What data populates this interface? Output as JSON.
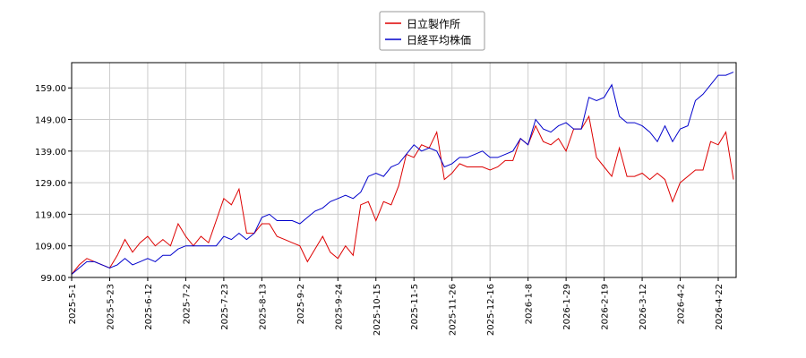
{
  "chart_data": {
    "type": "line",
    "x": [
      "2025-5-1",
      null,
      null,
      null,
      null,
      "2025-5-23",
      null,
      null,
      null,
      null,
      "2025-6-12",
      null,
      null,
      null,
      null,
      "2025-7-2",
      null,
      null,
      null,
      null,
      "2025-7-23",
      null,
      null,
      null,
      null,
      "2025-8-13",
      null,
      null,
      null,
      null,
      "2025-9-2",
      null,
      null,
      null,
      null,
      "2025-9-24",
      null,
      null,
      null,
      null,
      "2025-10-15",
      null,
      null,
      null,
      null,
      "2025-11-5",
      null,
      null,
      null,
      null,
      "2025-11-26",
      null,
      null,
      null,
      null,
      "2025-12-16",
      null,
      null,
      null,
      null,
      "2026-1-8",
      null,
      null,
      null,
      null,
      "2026-1-29",
      null,
      null,
      null,
      null,
      "2026-2-19",
      null,
      null,
      null,
      null,
      "2026-3-12",
      null,
      null,
      null,
      null,
      "2026-4-2",
      null,
      null,
      null,
      null,
      "2026-4-22",
      null,
      null
    ],
    "series": [
      {
        "name": "日立製作所",
        "color": "#dd0000",
        "values": [
          100,
          103,
          105,
          104,
          103,
          102,
          106,
          111,
          107,
          110,
          112,
          109,
          111,
          109,
          116,
          112,
          109,
          112,
          110,
          117,
          124,
          122,
          127,
          113,
          113,
          116,
          116,
          112,
          111,
          110,
          109,
          104,
          108,
          112,
          107,
          105,
          109,
          106,
          122,
          123,
          117,
          123,
          122,
          128,
          138,
          137,
          141,
          140,
          145,
          130,
          132,
          135,
          134,
          134,
          134,
          133,
          134,
          136,
          136,
          143,
          141,
          147,
          142,
          141,
          143,
          139,
          146,
          146,
          150,
          137,
          134,
          131,
          140,
          131,
          131,
          132,
          130,
          132,
          130,
          123,
          129,
          131,
          133,
          133,
          142,
          141,
          145,
          130
        ]
      },
      {
        "name": "日経平均株価",
        "color": "#0000cc",
        "values": [
          100,
          102,
          104,
          104,
          103,
          102,
          103,
          105,
          103,
          104,
          105,
          104,
          106,
          106,
          108,
          109,
          109,
          109,
          109,
          109,
          112,
          111,
          113,
          111,
          113,
          118,
          119,
          117,
          117,
          117,
          116,
          118,
          120,
          121,
          123,
          124,
          125,
          124,
          126,
          131,
          132,
          131,
          134,
          135,
          138,
          141,
          139,
          140,
          139,
          134,
          135,
          137,
          137,
          138,
          139,
          137,
          137,
          138,
          139,
          143,
          141,
          149,
          146,
          145,
          147,
          148,
          146,
          146,
          156,
          155,
          156,
          160,
          150,
          148,
          148,
          147,
          145,
          142,
          147,
          142,
          146,
          147,
          155,
          157,
          160,
          163,
          163,
          164
        ]
      }
    ],
    "ylim": [
      99,
      167
    ],
    "yticks": [
      {
        "value": 99,
        "label": "99.00"
      },
      {
        "value": 109,
        "label": "109.00"
      },
      {
        "value": 119,
        "label": "119.00"
      },
      {
        "value": 129,
        "label": "129.00"
      },
      {
        "value": 139,
        "label": "139.00"
      },
      {
        "value": 149,
        "label": "149.00"
      },
      {
        "value": 159,
        "label": "159.00"
      }
    ],
    "grid": true,
    "legend": "top"
  }
}
